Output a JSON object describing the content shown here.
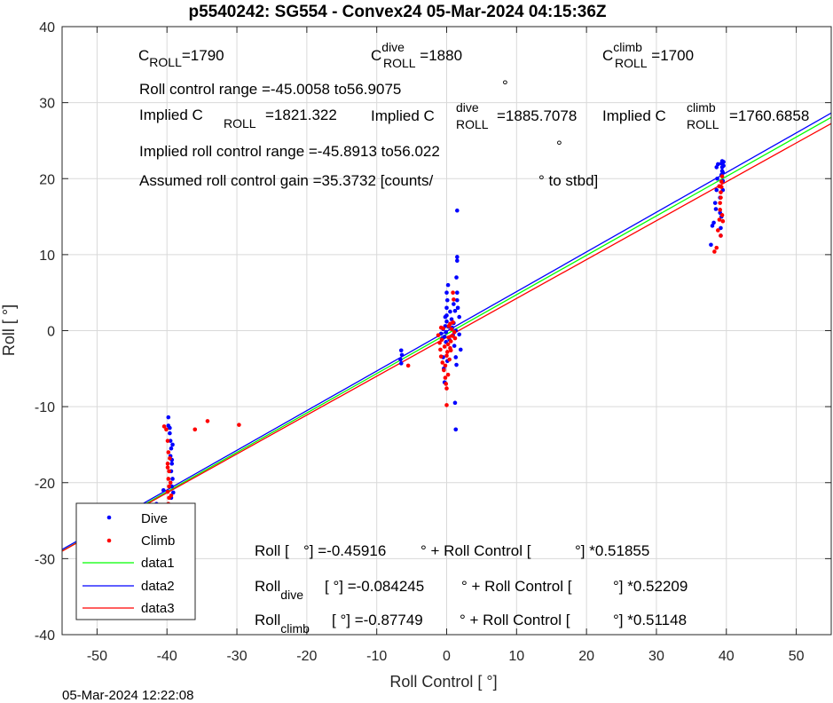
{
  "chart_data": {
    "type": "scatter",
    "title": "p5540242: SG554 - Convex24 05-Mar-2024 04:15:36Z",
    "xlabel": "Roll Control [   °]",
    "ylabel": "Roll [  °]",
    "xlim": [
      -55,
      55
    ],
    "ylim": [
      -40,
      40
    ],
    "xticks": [
      -50,
      -40,
      -30,
      -20,
      -10,
      0,
      10,
      20,
      30,
      40,
      50
    ],
    "yticks": [
      -40,
      -30,
      -20,
      -10,
      0,
      10,
      20,
      30,
      40
    ],
    "grid": true,
    "legend_position": "bottom-left",
    "series": [
      {
        "name": "Dive",
        "kind": "points",
        "color": "#0000ff",
        "points": [
          [
            -48.5,
            -24.7
          ],
          [
            -41.5,
            -22.8
          ],
          [
            -40.5,
            -21.0
          ],
          [
            -39.8,
            -11.4
          ],
          [
            -39.8,
            -12.5
          ],
          [
            -39.6,
            -13.5
          ],
          [
            -39.5,
            -14.5
          ],
          [
            -39.4,
            -15.5
          ],
          [
            -39.5,
            -16.5
          ],
          [
            -39.3,
            -17.5
          ],
          [
            -39.4,
            -18.5
          ],
          [
            -39.2,
            -19.5
          ],
          [
            -39.3,
            -20.5
          ],
          [
            -39.1,
            -21.3
          ],
          [
            -39.4,
            -22.0
          ],
          [
            -39.6,
            -12.8
          ],
          [
            -39.2,
            -15.0
          ],
          [
            -39.3,
            -17.0
          ],
          [
            -6.5,
            -2.6
          ],
          [
            -6.4,
            -3.2
          ],
          [
            -6.6,
            -3.8
          ],
          [
            -6.5,
            -4.3
          ],
          [
            -0.8,
            -0.4
          ],
          [
            -0.6,
            -1.0
          ],
          [
            -0.5,
            0.2
          ],
          [
            -0.3,
            -0.8
          ],
          [
            -0.2,
            0.6
          ],
          [
            -0.1,
            -1.5
          ],
          [
            0.0,
            1.2
          ],
          [
            0.0,
            2.0
          ],
          [
            0.0,
            3.0
          ],
          [
            0.1,
            4.0
          ],
          [
            0.0,
            5.0
          ],
          [
            0.2,
            6.0
          ],
          [
            -0.5,
            -3.5
          ],
          [
            -0.4,
            -5.0
          ],
          [
            -0.3,
            -6.8
          ],
          [
            0.1,
            -4.0
          ],
          [
            0.5,
            2.5
          ],
          [
            0.7,
            1.5
          ],
          [
            0.8,
            0.4
          ],
          [
            0.9,
            -0.6
          ],
          [
            1.0,
            1.0
          ],
          [
            1.1,
            -2.0
          ],
          [
            1.2,
            2.6
          ],
          [
            1.3,
            0.0
          ],
          [
            1.3,
            -3.5
          ],
          [
            1.4,
            -4.5
          ],
          [
            1.0,
            3.5
          ],
          [
            1.5,
            15.8
          ],
          [
            1.5,
            9.7
          ],
          [
            1.5,
            9.2
          ],
          [
            1.4,
            7.0
          ],
          [
            1.5,
            5.0
          ],
          [
            1.5,
            4.0
          ],
          [
            1.2,
            -9.5
          ],
          [
            1.3,
            -13.0
          ],
          [
            1.6,
            3.0
          ],
          [
            1.8,
            1.8
          ],
          [
            1.8,
            -0.5
          ],
          [
            2.0,
            -2.5
          ],
          [
            -0.1,
            -0.2
          ],
          [
            0.3,
            0.5
          ],
          [
            -0.2,
            1.8
          ],
          [
            0.4,
            -1.2
          ],
          [
            37.8,
            11.3
          ],
          [
            38.0,
            13.8
          ],
          [
            38.2,
            14.2
          ],
          [
            38.5,
            16.0
          ],
          [
            38.4,
            16.8
          ],
          [
            38.6,
            18.5
          ],
          [
            38.7,
            20.0
          ],
          [
            38.6,
            21.5
          ],
          [
            38.8,
            21.9
          ],
          [
            39.0,
            19.0
          ],
          [
            39.1,
            17.5
          ],
          [
            39.1,
            15.5
          ],
          [
            39.2,
            13.5
          ],
          [
            39.2,
            12.5
          ],
          [
            39.3,
            20.5
          ],
          [
            39.3,
            22.0
          ],
          [
            39.4,
            21.5
          ],
          [
            39.4,
            21.0
          ],
          [
            39.4,
            22.3
          ],
          [
            39.5,
            20.8
          ],
          [
            39.5,
            19.7
          ],
          [
            39.5,
            18.5
          ],
          [
            39.3,
            15.0
          ],
          [
            39.6,
            22.2
          ],
          [
            39.6,
            21.7
          ]
        ]
      },
      {
        "name": "Climb",
        "kind": "points",
        "color": "#ff0000",
        "points": [
          [
            -40.4,
            -12.6
          ],
          [
            -40.1,
            -13.0
          ],
          [
            -39.9,
            -14.5
          ],
          [
            -39.8,
            -16.0
          ],
          [
            -39.9,
            -17.5
          ],
          [
            -39.7,
            -18.5
          ],
          [
            -39.8,
            -19.5
          ],
          [
            -39.7,
            -20.5
          ],
          [
            -39.9,
            -21.2
          ],
          [
            -39.7,
            -22.0
          ],
          [
            -39.8,
            -22.8
          ],
          [
            -39.6,
            -23.3
          ],
          [
            -39.5,
            -20.0
          ],
          [
            -39.4,
            -21.7
          ],
          [
            -39.9,
            -18.0
          ],
          [
            -39.6,
            -16.8
          ],
          [
            -36.0,
            -13.0
          ],
          [
            -34.2,
            -11.9
          ],
          [
            -29.7,
            -12.4
          ],
          [
            -5.5,
            -4.6
          ],
          [
            -1.2,
            -0.6
          ],
          [
            -1.0,
            -1.6
          ],
          [
            -0.9,
            -2.5
          ],
          [
            -0.8,
            -3.4
          ],
          [
            -0.7,
            -1.2
          ],
          [
            -0.6,
            -4.2
          ],
          [
            -0.5,
            0.3
          ],
          [
            -0.4,
            -5.2
          ],
          [
            -0.3,
            -2.1
          ],
          [
            -0.2,
            -6.2
          ],
          [
            -0.1,
            -7.0
          ],
          [
            0.0,
            -7.6
          ],
          [
            0.0,
            -9.8
          ],
          [
            0.1,
            -2.8
          ],
          [
            0.2,
            -1.8
          ],
          [
            0.3,
            -0.9
          ],
          [
            0.3,
            0.6
          ],
          [
            0.4,
            -3.8
          ],
          [
            0.5,
            -2.3
          ],
          [
            0.6,
            -1.4
          ],
          [
            0.7,
            0.2
          ],
          [
            0.8,
            -0.7
          ],
          [
            0.9,
            1.1
          ],
          [
            1.0,
            4.1
          ],
          [
            0.9,
            5.0
          ],
          [
            1.1,
            -0.2
          ],
          [
            1.2,
            -1.0
          ],
          [
            0.0,
            -3.3
          ],
          [
            -0.2,
            -4.6
          ],
          [
            0.2,
            -5.8
          ],
          [
            0.5,
            0.9
          ],
          [
            -0.8,
            0.4
          ],
          [
            0.6,
            -2.6
          ],
          [
            38.3,
            10.4
          ],
          [
            38.6,
            10.9
          ],
          [
            38.8,
            13.2
          ],
          [
            39.0,
            14.6
          ],
          [
            39.1,
            15.9
          ],
          [
            39.1,
            16.8
          ],
          [
            39.2,
            17.5
          ],
          [
            39.2,
            18.2
          ],
          [
            39.3,
            18.9
          ],
          [
            39.3,
            19.6
          ],
          [
            39.4,
            20.3
          ],
          [
            39.4,
            15.2
          ],
          [
            39.5,
            14.4
          ],
          [
            39.2,
            12.5
          ],
          [
            39.0,
            19.0
          ]
        ]
      },
      {
        "name": "data1",
        "kind": "line",
        "color": "#00ff00",
        "intercept": -0.45916,
        "slope": 0.51855
      },
      {
        "name": "data2",
        "kind": "line",
        "color": "#0000ff",
        "intercept": -0.084245,
        "slope": 0.52209
      },
      {
        "name": "data3",
        "kind": "line",
        "color": "#ff0000",
        "intercept": -0.87749,
        "slope": 0.51148
      }
    ],
    "annotations": {
      "c_roll": {
        "base": "C",
        "sub": "ROLL",
        "value": "=1790"
      },
      "c_roll_dive": {
        "base": "C",
        "sup": "dive",
        "sub": "ROLL",
        "value": " =1880"
      },
      "c_roll_climb": {
        "base": "C",
        "sup": "climb",
        "sub": "ROLL",
        "value": " =1700"
      },
      "range_line": "Roll control range =-45.0058 to56.9075",
      "implied_c": {
        "prefix": "Implied C",
        "sub": "ROLL",
        "value": "=1821.322"
      },
      "implied_c_dive": {
        "prefix": "Implied C",
        "sup": "dive",
        "sub": "ROLL",
        "value": "=1885.7078"
      },
      "implied_c_climb": {
        "prefix": "Implied C",
        "sup": "climb",
        "sub": "ROLL",
        "value": "=1760.6858"
      },
      "implied_range": "Implied roll control range =-45.8913 to56.022",
      "gain_left": "Assumed roll control gain =35.3732 [counts/",
      "gain_right": "° to stbd]",
      "deg": "°",
      "fit_all": {
        "p1": "Roll [",
        "p2": "°] =-0.45916",
        "p3": "° + Roll Control [",
        "p4": "°] *0.51855"
      },
      "fit_dive": {
        "base": "Roll",
        "sub": "dive",
        "p2": "[  °] =-0.084245",
        "p3": "° + Roll Control [",
        "p4": "°] *0.52209"
      },
      "fit_climb": {
        "base": "Roll",
        "sub": "climb",
        "p2": "[  °] =-0.87749",
        "p3": "° + Roll Control [",
        "p4": "°] *0.51148"
      }
    }
  },
  "timestamp": "05-Mar-2024 12:22:08"
}
